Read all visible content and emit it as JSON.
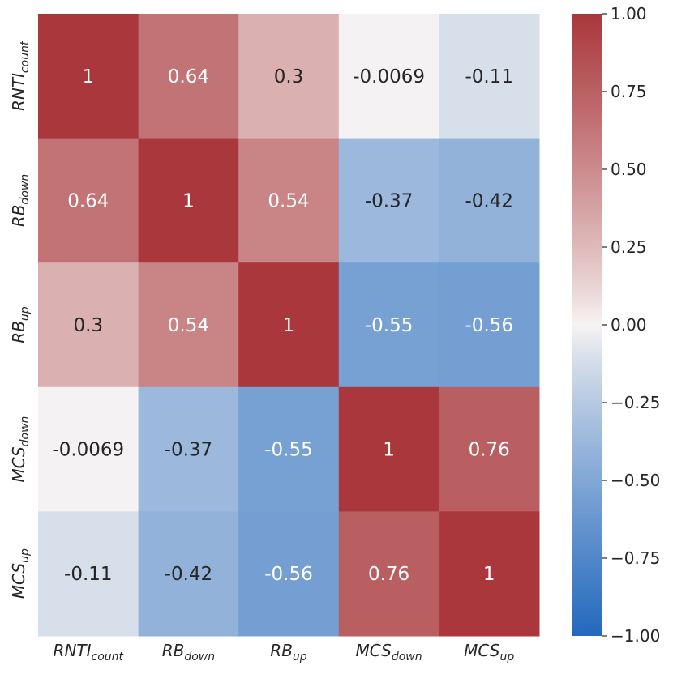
{
  "chart_data": {
    "type": "heatmap",
    "x_labels": [
      {
        "base": "RNTI",
        "sub": "count"
      },
      {
        "base": "RB",
        "sub": "down"
      },
      {
        "base": "RB",
        "sub": "up"
      },
      {
        "base": "MCS",
        "sub": "down"
      },
      {
        "base": "MCS",
        "sub": "up"
      }
    ],
    "y_labels": [
      {
        "base": "RNTI",
        "sub": "count"
      },
      {
        "base": "RB",
        "sub": "down"
      },
      {
        "base": "RB",
        "sub": "up"
      },
      {
        "base": "MCS",
        "sub": "down"
      },
      {
        "base": "MCS",
        "sub": "up"
      }
    ],
    "values": [
      [
        1,
        0.64,
        0.3,
        -0.0069,
        -0.11
      ],
      [
        0.64,
        1,
        0.54,
        -0.37,
        -0.42
      ],
      [
        0.3,
        0.54,
        1,
        -0.55,
        -0.56
      ],
      [
        -0.0069,
        -0.37,
        -0.55,
        1,
        0.76
      ],
      [
        -0.11,
        -0.42,
        -0.56,
        0.76,
        1
      ]
    ],
    "value_labels": [
      [
        "1",
        "0.64",
        "0.3",
        "-0.0069",
        "-0.11"
      ],
      [
        "0.64",
        "1",
        "0.54",
        "-0.37",
        "-0.42"
      ],
      [
        "0.3",
        "0.54",
        "1",
        "-0.55",
        "-0.56"
      ],
      [
        "-0.0069",
        "-0.37",
        "-0.55",
        "1",
        "0.76"
      ],
      [
        "-0.11",
        "-0.42",
        "-0.56",
        "0.76",
        "1"
      ]
    ],
    "vmin": -1.0,
    "vmax": 1.0,
    "colormap": "vlag",
    "colorbar_ticks": [
      1.0,
      0.75,
      0.5,
      0.25,
      0.0,
      -0.25,
      -0.5,
      -0.75,
      -1.0
    ],
    "colorbar_tick_labels": [
      "1.00",
      "0.75",
      "0.50",
      "0.25",
      "0.00",
      "−0.25",
      "−0.50",
      "−0.75",
      "−1.00"
    ],
    "colors": {
      "low": "#2369bd",
      "mid": "#f7f4f3",
      "high": "#a9373b",
      "text_dark": "#262626",
      "text_light": "#ffffff"
    }
  }
}
